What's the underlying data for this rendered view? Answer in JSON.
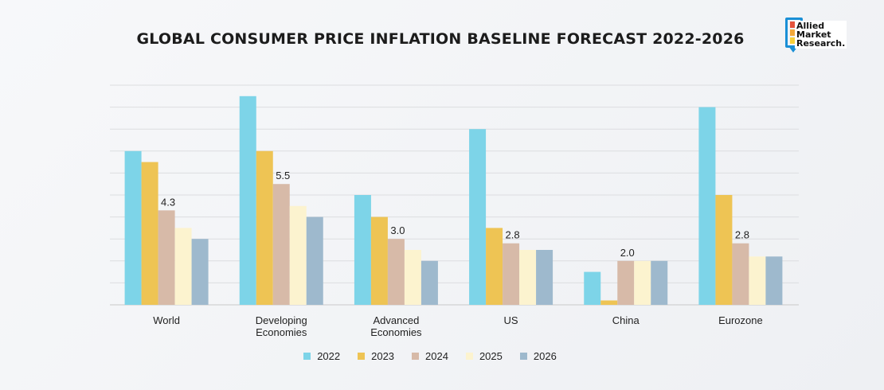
{
  "chart_data": {
    "type": "bar",
    "title": "GLOBAL CONSUMER PRICE INFLATION BASELINE FORECAST 2022-2026",
    "categories": [
      "World",
      "Developing Economies",
      "Advanced Economies",
      "US",
      "China",
      "Eurozone"
    ],
    "category_lines": [
      [
        "World"
      ],
      [
        "Developing",
        "Economies"
      ],
      [
        "Advanced",
        "Economies"
      ],
      [
        "US"
      ],
      [
        "China"
      ],
      [
        "Eurozone"
      ]
    ],
    "series": [
      {
        "name": "2022",
        "color": "#7dd4e8",
        "values": [
          7.0,
          9.5,
          5.0,
          8.0,
          1.5,
          9.0
        ]
      },
      {
        "name": "2023",
        "color": "#eec454",
        "values": [
          6.5,
          7.0,
          4.0,
          3.5,
          0.2,
          5.0
        ]
      },
      {
        "name": "2024",
        "color": "#d7baa8",
        "values": [
          4.3,
          5.5,
          3.0,
          2.8,
          2.0,
          2.8
        ]
      },
      {
        "name": "2025",
        "color": "#fcf3cf",
        "values": [
          3.5,
          4.5,
          2.5,
          2.5,
          2.0,
          2.2
        ]
      },
      {
        "name": "2026",
        "color": "#9eb9cd",
        "values": [
          3.0,
          4.0,
          2.0,
          2.5,
          2.0,
          2.2
        ]
      }
    ],
    "data_labels": [
      {
        "category_index": 0,
        "series_index": 2,
        "text": "4.3"
      },
      {
        "category_index": 1,
        "series_index": 2,
        "text": "5.5"
      },
      {
        "category_index": 2,
        "series_index": 2,
        "text": "3.0"
      },
      {
        "category_index": 3,
        "series_index": 2,
        "text": "2.8"
      },
      {
        "category_index": 4,
        "series_index": 2,
        "text": "2.0"
      },
      {
        "category_index": 5,
        "series_index": 2,
        "text": "2.8"
      }
    ],
    "ylim": [
      0,
      10
    ],
    "y_gridline_step": 1,
    "legend": "bottom-center"
  },
  "brand": {
    "lines": [
      "Allied",
      "Market",
      "Research."
    ],
    "colors": [
      "#e5533c",
      "#f2a83a",
      "#f7cf3a"
    ],
    "frame_color": "#1a8fd6"
  }
}
